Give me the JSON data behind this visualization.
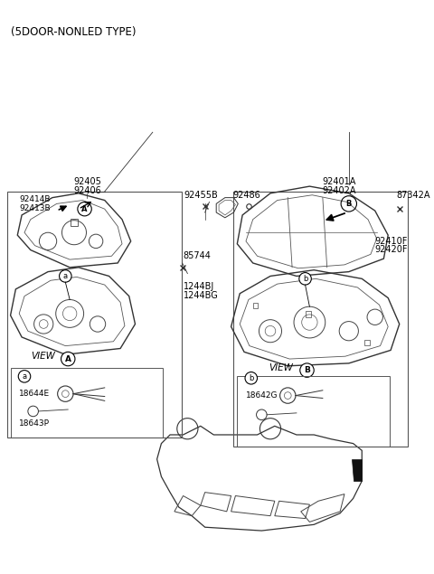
{
  "title": "(5DOOR-NONLED TYPE)",
  "bg_color": "#ffffff",
  "text_color": "#000000",
  "labels": {
    "top_left": "(5DOOR-NONLED TYPE)",
    "l92405": "92405",
    "l92406": "92406",
    "l92401A": "92401A",
    "l92402A": "92402A",
    "l92455B": "92455B",
    "l92486": "92486",
    "l87342A": "87342A",
    "l92414B": "92414B",
    "l92413B": "92413B",
    "l85744": "85744",
    "l1244BJ": "1244BJ",
    "l1244BG": "1244BG",
    "l92410F": "92410F",
    "l92420F": "92420F",
    "l18644E": "18644E",
    "l18643P": "18643P",
    "l18642G": "18642G",
    "viewA": "VIEW",
    "viewB": "VIEW"
  }
}
